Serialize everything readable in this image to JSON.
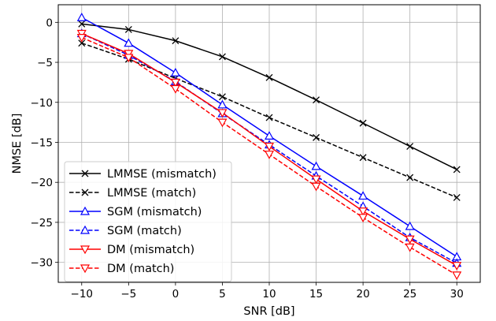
{
  "chart_data": {
    "type": "line",
    "title": "",
    "xlabel": "SNR [dB]",
    "ylabel": "NMSE [dB]",
    "xlim": [
      -12.5,
      32.5
    ],
    "ylim": [
      -32.5,
      2.2
    ],
    "xticks": [
      -10,
      -5,
      0,
      5,
      10,
      15,
      20,
      25,
      30
    ],
    "yticks": [
      0,
      -5,
      -10,
      -15,
      -20,
      -25,
      -30
    ],
    "grid": true,
    "legend_position": "lower-left",
    "x": [
      -10,
      -5,
      0,
      5,
      10,
      15,
      20,
      25,
      30
    ],
    "series": [
      {
        "name": "LMMSE (mismatch)",
        "color": "#000000",
        "dash": "solid",
        "marker": "x",
        "values": [
          -0.2,
          -0.9,
          -2.3,
          -4.3,
          -6.9,
          -9.7,
          -12.6,
          -15.5,
          -18.4
        ]
      },
      {
        "name": "LMMSE (match)",
        "color": "#000000",
        "dash": "dashed",
        "marker": "x",
        "values": [
          -2.6,
          -4.6,
          -7.0,
          -9.3,
          -11.9,
          -14.4,
          -16.9,
          -19.4,
          -21.9
        ]
      },
      {
        "name": "SGM (mismatch)",
        "color": "#0000ff",
        "dash": "solid",
        "marker": "triangle-up",
        "values": [
          0.6,
          -2.6,
          -6.3,
          -10.3,
          -14.2,
          -18.0,
          -21.7,
          -25.5,
          -29.3
        ]
      },
      {
        "name": "SGM (match)",
        "color": "#0000ff",
        "dash": "dashed",
        "marker": "triangle-up",
        "values": [
          -1.4,
          -4.1,
          -7.4,
          -11.4,
          -15.3,
          -19.2,
          -23.0,
          -26.9,
          -30.1
        ]
      },
      {
        "name": "DM (mismatch)",
        "color": "#ff0000",
        "dash": "solid",
        "marker": "triangle-down",
        "values": [
          -1.4,
          -3.9,
          -7.5,
          -11.3,
          -15.5,
          -19.6,
          -23.6,
          -27.1,
          -30.4
        ]
      },
      {
        "name": "DM (match)",
        "color": "#ff0000",
        "dash": "dashed",
        "marker": "triangle-down",
        "values": [
          -1.9,
          -4.4,
          -8.3,
          -12.5,
          -16.5,
          -20.5,
          -24.4,
          -28.1,
          -31.6
        ]
      }
    ]
  }
}
